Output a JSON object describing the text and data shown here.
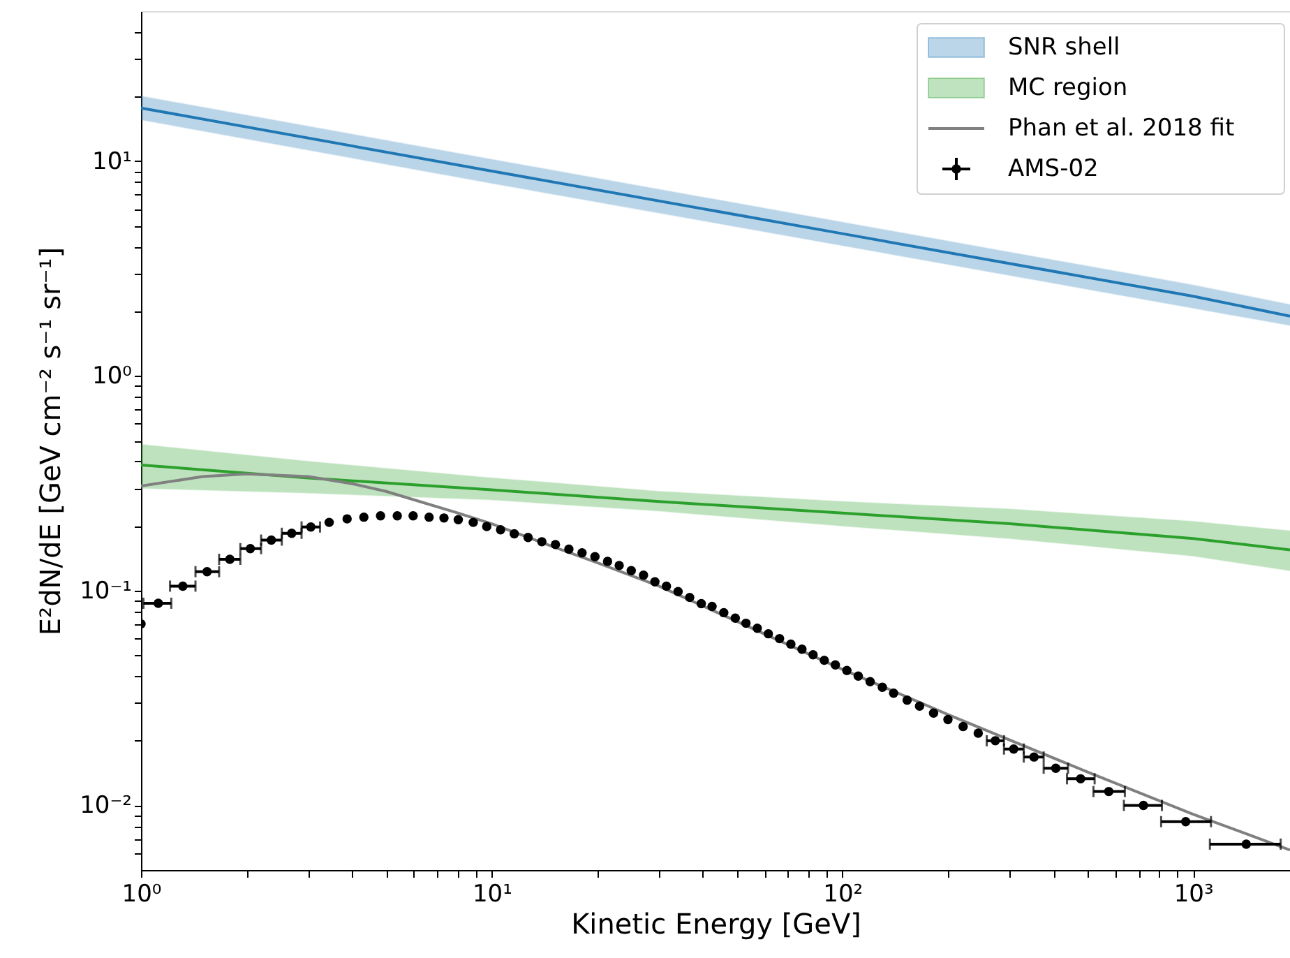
{
  "chart_data": {
    "type": "line",
    "xlabel": "Kinetic Energy [GeV]",
    "ylabel": "E²dN/dE [GeV cm⁻² s⁻¹ sr⁻¹]",
    "log": "xy",
    "grid": false,
    "legend": "top right",
    "xlim": [
      1,
      1890
    ],
    "ylim": [
      0.005,
      50
    ],
    "xticks": [
      {
        "value": 1,
        "label": "10⁰"
      },
      {
        "value": 2,
        "label": null
      },
      {
        "value": 3,
        "label": null
      },
      {
        "value": 4,
        "label": null
      },
      {
        "value": 5,
        "label": null
      },
      {
        "value": 6,
        "label": null
      },
      {
        "value": 7,
        "label": null
      },
      {
        "value": 8,
        "label": null
      },
      {
        "value": 9,
        "label": null
      },
      {
        "value": 10,
        "label": "10¹"
      },
      {
        "value": 20,
        "label": null
      },
      {
        "value": 30,
        "label": null
      },
      {
        "value": 40,
        "label": null
      },
      {
        "value": 50,
        "label": null
      },
      {
        "value": 60,
        "label": null
      },
      {
        "value": 70,
        "label": null
      },
      {
        "value": 80,
        "label": null
      },
      {
        "value": 90,
        "label": null
      },
      {
        "value": 100,
        "label": "10²"
      },
      {
        "value": 200,
        "label": null
      },
      {
        "value": 300,
        "label": null
      },
      {
        "value": 400,
        "label": null
      },
      {
        "value": 500,
        "label": null
      },
      {
        "value": 600,
        "label": null
      },
      {
        "value": 700,
        "label": null
      },
      {
        "value": 800,
        "label": null
      },
      {
        "value": 900,
        "label": null
      },
      {
        "value": 1000,
        "label": "10³"
      }
    ],
    "yticks": [
      {
        "value": 0.006,
        "label": null
      },
      {
        "value": 0.007,
        "label": null
      },
      {
        "value": 0.008,
        "label": null
      },
      {
        "value": 0.009,
        "label": null
      },
      {
        "value": 0.01,
        "label": "10⁻²"
      },
      {
        "value": 0.02,
        "label": null
      },
      {
        "value": 0.03,
        "label": null
      },
      {
        "value": 0.04,
        "label": null
      },
      {
        "value": 0.05,
        "label": null
      },
      {
        "value": 0.06,
        "label": null
      },
      {
        "value": 0.07,
        "label": null
      },
      {
        "value": 0.08,
        "label": null
      },
      {
        "value": 0.09,
        "label": null
      },
      {
        "value": 0.1,
        "label": "10⁻¹"
      },
      {
        "value": 0.2,
        "label": null
      },
      {
        "value": 0.3,
        "label": null
      },
      {
        "value": 0.4,
        "label": null
      },
      {
        "value": 0.5,
        "label": null
      },
      {
        "value": 0.6,
        "label": null
      },
      {
        "value": 0.7,
        "label": null
      },
      {
        "value": 0.8,
        "label": null
      },
      {
        "value": 0.9,
        "label": null
      },
      {
        "value": 1,
        "label": "10⁰"
      },
      {
        "value": 2,
        "label": null
      },
      {
        "value": 3,
        "label": null
      },
      {
        "value": 4,
        "label": null
      },
      {
        "value": 5,
        "label": null
      },
      {
        "value": 6,
        "label": null
      },
      {
        "value": 7,
        "label": null
      },
      {
        "value": 8,
        "label": null
      },
      {
        "value": 9,
        "label": null
      },
      {
        "value": 10,
        "label": "10¹"
      },
      {
        "value": 20,
        "label": null
      },
      {
        "value": 30,
        "label": null
      },
      {
        "value": 40,
        "label": null
      }
    ],
    "series": [
      {
        "name": "SNR shell",
        "color": "#1f77b4",
        "x": [
          1,
          10,
          100,
          1000,
          1890
        ],
        "values": [
          17.7,
          9.0,
          4.6,
          2.35,
          1.9
        ],
        "lower": [
          15.6,
          7.9,
          4.05,
          2.07,
          1.72
        ],
        "upper": [
          20.1,
          10.2,
          5.2,
          2.65,
          2.15
        ]
      },
      {
        "name": "MC region",
        "color": "#2ca02c",
        "x": [
          1,
          3,
          10,
          30,
          100,
          300,
          1000,
          1890
        ],
        "values": [
          0.385,
          0.335,
          0.295,
          0.26,
          0.23,
          0.205,
          0.175,
          0.155
        ],
        "lower": [
          0.3,
          0.285,
          0.265,
          0.235,
          0.2,
          0.175,
          0.145,
          0.124
        ],
        "upper": [
          0.48,
          0.4,
          0.335,
          0.29,
          0.26,
          0.24,
          0.21,
          0.19
        ]
      },
      {
        "name": "Phan et al. 2018 fit",
        "color": "#808080",
        "x": [
          1,
          1.5,
          2,
          3,
          4,
          5,
          6,
          8,
          10,
          15,
          20,
          30,
          50,
          100,
          200,
          500,
          1000,
          1890
        ],
        "values": [
          0.307,
          0.34,
          0.35,
          0.34,
          0.315,
          0.29,
          0.265,
          0.23,
          0.205,
          0.16,
          0.135,
          0.105,
          0.072,
          0.043,
          0.0265,
          0.0143,
          0.0091,
          0.0062
        ]
      },
      {
        "name": "AMS-02",
        "type": "scatter",
        "color": "#000000",
        "marker": "circle",
        "x": [
          1.0,
          1.12,
          1.316,
          1.543,
          1.792,
          2.05,
          2.353,
          2.69,
          3.05,
          3.44,
          3.87,
          4.32,
          4.82,
          5.38,
          5.97,
          6.63,
          7.31,
          8.03,
          8.86,
          9.68,
          10.6,
          11.6,
          12.7,
          13.9,
          15.2,
          16.6,
          18.1,
          19.7,
          21.4,
          23.1,
          25.0,
          27.1,
          29.2,
          31.5,
          34.0,
          36.7,
          39.6,
          42.5,
          45.9,
          49.5,
          53.1,
          57.2,
          61.5,
          66.2,
          71.3,
          76.7,
          82.5,
          88.8,
          95.5,
          103,
          111,
          120,
          130,
          140,
          153,
          166,
          182,
          200,
          221,
          244,
          273,
          308,
          352,
          406,
          478,
          575,
          722,
          953,
          1418
        ],
        "values": [
          0.07,
          0.0874,
          0.105,
          0.1226,
          0.14,
          0.157,
          0.172,
          0.185,
          0.198,
          0.208,
          0.216,
          0.22,
          0.223,
          0.223,
          0.223,
          0.22,
          0.218,
          0.214,
          0.208,
          0.199,
          0.192,
          0.184,
          0.177,
          0.169,
          0.164,
          0.156,
          0.15,
          0.144,
          0.137,
          0.131,
          0.124,
          0.118,
          0.11,
          0.105,
          0.099,
          0.093,
          0.087,
          0.0844,
          0.079,
          0.0745,
          0.0705,
          0.0668,
          0.063,
          0.0598,
          0.0564,
          0.0534,
          0.0503,
          0.0474,
          0.0451,
          0.0425,
          0.04,
          0.0377,
          0.0355,
          0.0333,
          0.0309,
          0.029,
          0.0269,
          0.0251,
          0.0233,
          0.0217,
          0.02,
          0.0183,
          0.0168,
          0.0149,
          0.0133,
          0.0116,
          0.01,
          0.0084,
          0.0066
        ],
        "xerrors": [
          null,
          [
            1.016,
            1.22
          ],
          [
            1.21,
            1.43
          ],
          [
            1.43,
            1.67
          ],
          [
            1.67,
            1.92
          ],
          [
            1.92,
            2.2
          ],
          [
            2.2,
            2.52
          ],
          [
            2.52,
            2.87
          ],
          [
            2.87,
            3.24
          ],
          null,
          null,
          null,
          null,
          null,
          null,
          null,
          null,
          null,
          null,
          null,
          null,
          null,
          null,
          null,
          null,
          null,
          null,
          null,
          null,
          null,
          null,
          null,
          null,
          null,
          null,
          null,
          null,
          null,
          null,
          null,
          null,
          null,
          null,
          null,
          null,
          null,
          null,
          null,
          null,
          null,
          null,
          null,
          null,
          null,
          null,
          null,
          null,
          null,
          null,
          null,
          [
            258,
            289
          ],
          [
            289,
            329
          ],
          [
            329,
            375
          ],
          [
            375,
            440
          ],
          [
            437,
            524
          ],
          [
            520,
            639
          ],
          [
            635,
            815
          ],
          [
            811,
            1125
          ],
          [
            1117,
            1778
          ]
        ]
      }
    ]
  }
}
